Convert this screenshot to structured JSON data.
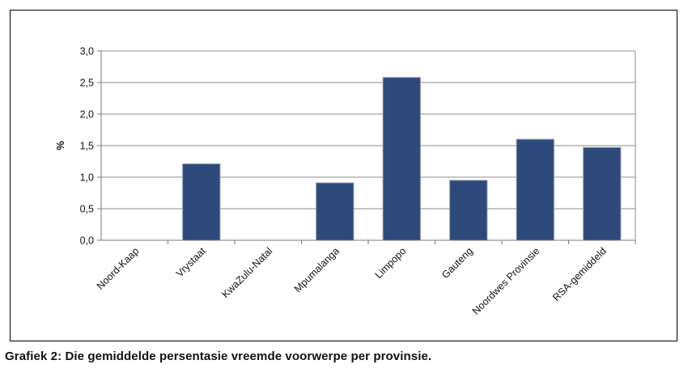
{
  "chart_data": {
    "type": "bar",
    "title": "",
    "xlabel": "",
    "ylabel": "%",
    "ylim": [
      0,
      3.0
    ],
    "yticks": [
      "0,0",
      "0,5",
      "1,0",
      "1,5",
      "2,0",
      "2,5",
      "3,0"
    ],
    "ytick_values": [
      0,
      0.5,
      1.0,
      1.5,
      2.0,
      2.5,
      3.0
    ],
    "categories": [
      "Noord-Kaap",
      "Vrystaat",
      "KwaZulu-Natal",
      "Mpumalanga",
      "Limpopo",
      "Gauteng",
      "Noordwes Provinsie",
      "RSA-gemiddeld"
    ],
    "values": [
      0,
      1.21,
      0,
      0.91,
      2.58,
      0.95,
      1.6,
      1.47
    ],
    "grid": true,
    "legend": "none",
    "bar_color": "#2e4a7b",
    "grid_color": "#8c8c8c"
  },
  "caption": "Grafiek 2: Die gemiddelde persentasie vreemde voorwerpe per provinsie."
}
